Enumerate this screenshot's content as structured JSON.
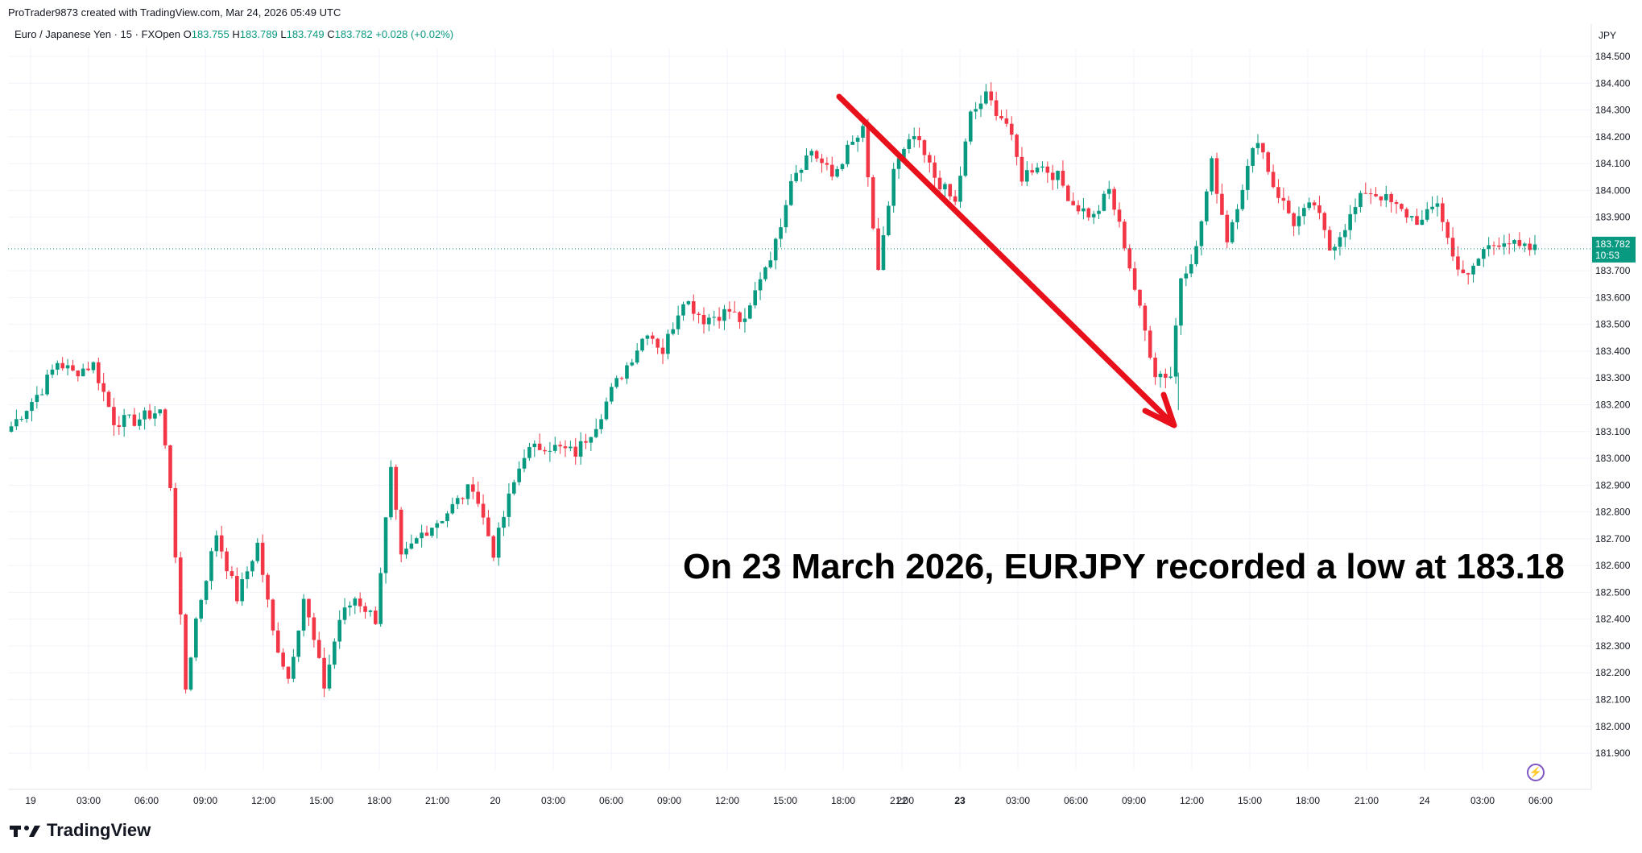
{
  "header": {
    "created_by": "ProTrader9873 created with TradingView.com, Mar 24, 2026 05:49 UTC"
  },
  "symbol": {
    "name": "Euro / Japanese Yen · 15 · FXOpen",
    "o_label": "O",
    "o_value": "183.755",
    "h_label": "H",
    "h_value": "183.789",
    "l_label": "L",
    "l_value": "183.749",
    "c_label": "C",
    "c_value": "183.782",
    "change": "+0.028 (+0.02%)"
  },
  "footer": {
    "logo_text": "TradingView"
  },
  "colors": {
    "up": "#089981",
    "down": "#f23645",
    "arrow": "#e8101a",
    "grid": "#f0f3fa",
    "text": "#131722"
  },
  "chart_data": {
    "type": "candlestick",
    "currency": "JPY",
    "annotation": "On 23 March 2026, EURJPY recorded a low at 183.18",
    "last_price": "183.782",
    "countdown": "10:53",
    "ylim": [
      181.84,
      184.53
    ],
    "y_ticks": [
      "184.500",
      "184.400",
      "184.300",
      "184.200",
      "184.100",
      "184.000",
      "183.900",
      "183.800",
      "183.700",
      "183.600",
      "183.500",
      "183.400",
      "183.300",
      "183.200",
      "183.100",
      "183.000",
      "182.900",
      "182.800",
      "182.700",
      "182.600",
      "182.500",
      "182.400",
      "182.300",
      "182.200",
      "182.100",
      "182.000",
      "181.900"
    ],
    "x_ticks": [
      "19",
      "03:00",
      "06:00",
      "09:00",
      "12:00",
      "15:00",
      "18:00",
      "21:00",
      "20",
      "03:00",
      "06:00",
      "09:00",
      "12:00",
      "15:00",
      "18:00",
      "21:00",
      "22",
      "23",
      "03:00",
      "06:00",
      "09:00",
      "12:00",
      "15:00",
      "18:00",
      "21:00",
      "24",
      "03:00",
      "06:00"
    ],
    "anchors": [
      [
        0,
        183.12
      ],
      [
        6,
        183.26
      ],
      [
        9,
        183.36
      ],
      [
        12,
        183.32
      ],
      [
        16,
        183.35
      ],
      [
        20,
        183.14
      ],
      [
        24,
        183.14
      ],
      [
        29,
        183.18
      ],
      [
        31,
        182.9
      ],
      [
        34,
        182.14
      ],
      [
        36,
        182.4
      ],
      [
        40,
        182.72
      ],
      [
        44,
        182.48
      ],
      [
        48,
        182.68
      ],
      [
        51,
        182.35
      ],
      [
        54,
        182.18
      ],
      [
        57,
        182.48
      ],
      [
        61,
        182.15
      ],
      [
        64,
        182.4
      ],
      [
        67,
        182.48
      ],
      [
        71,
        182.4
      ],
      [
        74,
        182.95
      ],
      [
        76,
        182.62
      ],
      [
        80,
        182.72
      ],
      [
        84,
        182.78
      ],
      [
        90,
        182.9
      ],
      [
        94,
        182.65
      ],
      [
        97,
        182.85
      ],
      [
        100,
        183.02
      ],
      [
        104,
        183.05
      ],
      [
        110,
        183.02
      ],
      [
        114,
        183.13
      ],
      [
        117,
        183.25
      ],
      [
        121,
        183.38
      ],
      [
        124,
        183.48
      ],
      [
        127,
        183.4
      ],
      [
        131,
        183.6
      ],
      [
        135,
        183.52
      ],
      [
        140,
        183.55
      ],
      [
        143,
        183.5
      ],
      [
        146,
        183.68
      ],
      [
        149,
        183.8
      ],
      [
        152,
        184.05
      ],
      [
        156,
        184.15
      ],
      [
        160,
        184.05
      ],
      [
        163,
        184.15
      ],
      [
        166,
        184.22
      ],
      [
        169,
        183.68
      ],
      [
        172,
        184.08
      ],
      [
        176,
        184.2
      ],
      [
        180,
        184.05
      ],
      [
        184,
        183.95
      ],
      [
        187,
        184.28
      ],
      [
        190,
        184.35
      ],
      [
        194,
        184.25
      ],
      [
        197,
        184.05
      ],
      [
        200,
        184.1
      ],
      [
        204,
        184.05
      ],
      [
        207,
        183.95
      ],
      [
        211,
        183.9
      ],
      [
        214,
        184.0
      ],
      [
        217,
        183.8
      ],
      [
        220,
        183.55
      ],
      [
        223,
        183.32
      ],
      [
        226,
        183.31
      ],
      [
        228,
        183.68
      ],
      [
        231,
        183.78
      ],
      [
        234,
        184.1
      ],
      [
        237,
        183.82
      ],
      [
        240,
        184.02
      ],
      [
        243,
        184.2
      ],
      [
        246,
        184.02
      ],
      [
        250,
        183.88
      ],
      [
        254,
        183.95
      ],
      [
        257,
        183.78
      ],
      [
        261,
        183.9
      ],
      [
        264,
        184.0
      ],
      [
        267,
        183.98
      ],
      [
        271,
        183.92
      ],
      [
        275,
        183.88
      ],
      [
        278,
        183.96
      ],
      [
        281,
        183.75
      ],
      [
        284,
        183.67
      ],
      [
        287,
        183.78
      ],
      [
        291,
        183.82
      ],
      [
        294,
        183.78
      ],
      [
        297,
        183.78
      ]
    ]
  }
}
